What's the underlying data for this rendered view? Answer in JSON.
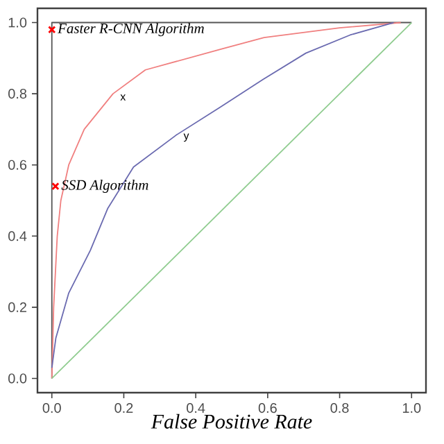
{
  "chart_data": {
    "type": "line",
    "xlabel": "False Positive Rate",
    "xlim": [
      -0.04,
      1.04
    ],
    "ylim": [
      -0.04,
      1.04
    ],
    "xticks": [
      {
        "value": 0,
        "label": "0.0"
      },
      {
        "value": 0.2,
        "label": "0.2"
      },
      {
        "value": 0.4,
        "label": "0.4"
      },
      {
        "value": 0.6,
        "label": "0.6"
      },
      {
        "value": 0.8,
        "label": "0.8"
      },
      {
        "value": 1.0,
        "label": "1.0"
      }
    ],
    "yticks": [
      {
        "value": 0,
        "label": "0.0"
      },
      {
        "value": 0.2,
        "label": "0.2"
      },
      {
        "value": 0.4,
        "label": "0.4"
      },
      {
        "value": 0.6,
        "label": "0.6"
      },
      {
        "value": 0.8,
        "label": "0.8"
      },
      {
        "value": 1.0,
        "label": "1.0"
      }
    ],
    "series": [
      {
        "color": "#555555",
        "x": [
          0,
          0,
          1
        ],
        "values": [
          0,
          1,
          1
        ]
      },
      {
        "name": "x",
        "color": "#f07f7f",
        "x": [
          0,
          0.005,
          0.015,
          0.025,
          0.047,
          0.09,
          0.17,
          0.26,
          0.47,
          0.59,
          0.8,
          0.97
        ],
        "values": [
          0,
          0.2,
          0.4,
          0.5,
          0.6,
          0.7,
          0.8,
          0.867,
          0.925,
          0.958,
          0.985,
          1.0
        ]
      },
      {
        "name": "y",
        "color": "#6a6ab0",
        "x": [
          0,
          0.011,
          0.047,
          0.107,
          0.155,
          0.227,
          0.346,
          0.468,
          0.587,
          0.706,
          0.829,
          0.95
        ],
        "values": [
          0.03,
          0.113,
          0.24,
          0.36,
          0.477,
          0.594,
          0.684,
          0.762,
          0.84,
          0.914,
          0.965,
          1.0
        ]
      },
      {
        "color": "#8fcc8f",
        "x": [
          0,
          1
        ],
        "values": [
          0,
          1
        ]
      }
    ],
    "annotations": [
      {
        "text": "Faster R-CNN Algorithm",
        "x": 0,
        "y": 0.98
      },
      {
        "text": "SSD Algorithm",
        "x": 0.01,
        "y": 0.54
      }
    ]
  }
}
